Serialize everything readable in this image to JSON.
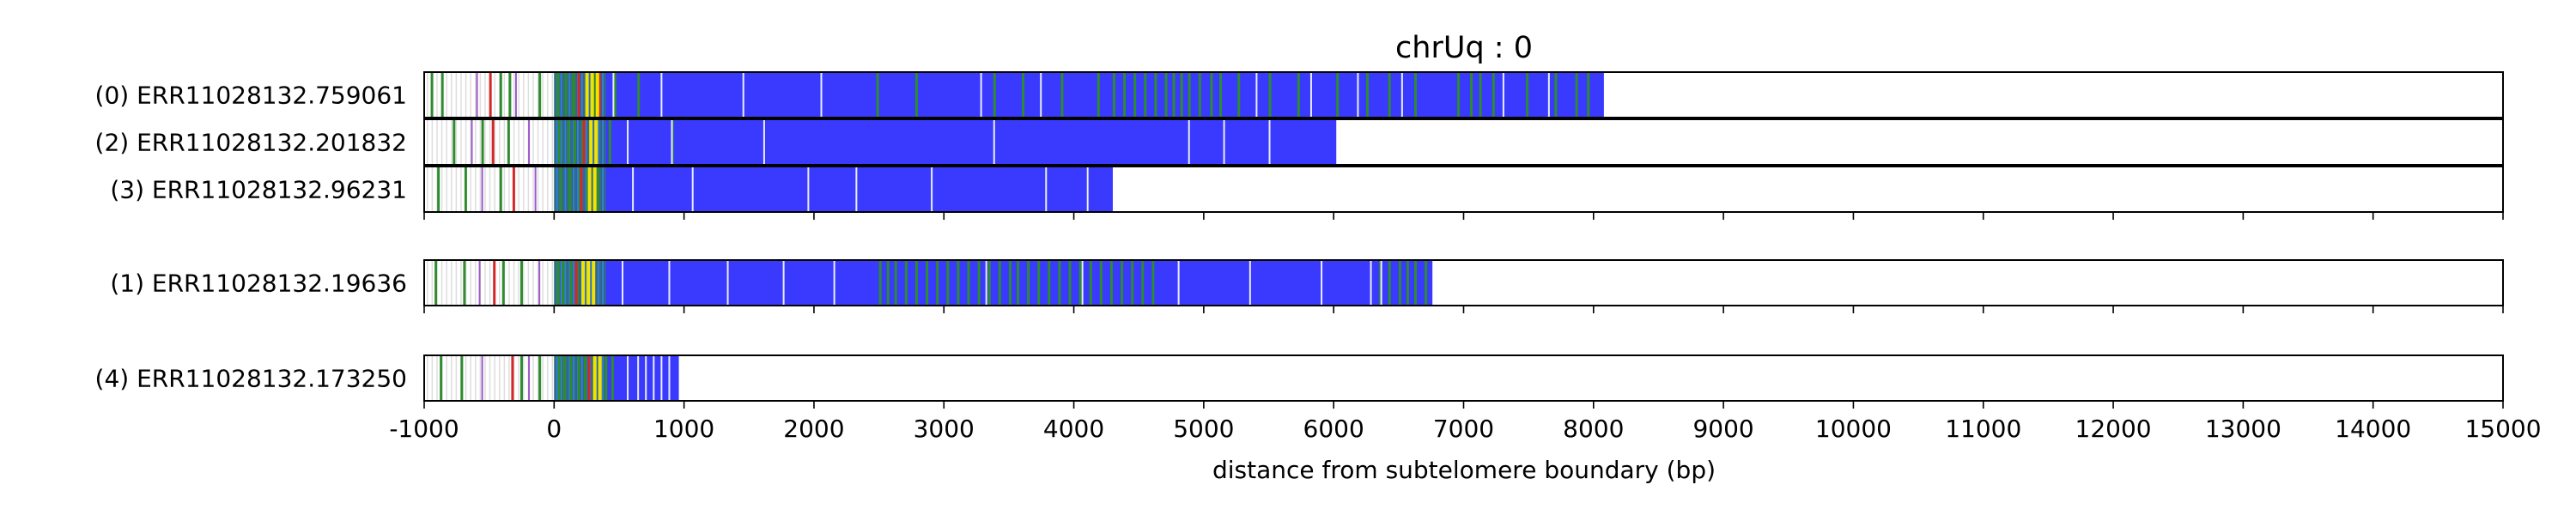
{
  "chart_data": {
    "type": "bar",
    "title": "chrUq : 0",
    "xlabel": "distance from subtelomere boundary (bp)",
    "ylabel": "",
    "xlim": [
      -1000,
      15000
    ],
    "xticks": [
      -1000,
      0,
      1000,
      2000,
      3000,
      4000,
      5000,
      6000,
      7000,
      8000,
      9000,
      10000,
      11000,
      12000,
      13000,
      14000,
      15000
    ],
    "grid": "x-dashed",
    "colors": {
      "fill": "#3a3aff",
      "green": "#2e8b2e",
      "yellow": "#f2e200",
      "red": "#d62728",
      "purple": "#9a59c9",
      "light_gray": "#c8c8c8",
      "teal": "#2aa7a7"
    },
    "groups": [
      {
        "reads": [
          {
            "label": "(0) ERR11028132.759061",
            "end": 8080,
            "green_positions": [
              -950,
              -870,
              -420,
              -350,
              -120,
              20,
              80,
              140,
              300,
              460,
              640,
              2480,
              2780,
              3380,
              3600,
              3900,
              4180,
              4300,
              4380,
              4460,
              4540,
              4620,
              4700,
              4760,
              4820,
              4880,
              4960,
              5050,
              5120,
              5260,
              5500,
              5720,
              6020,
              6250,
              6420,
              6620,
              6950,
              7050,
              7120,
              7220,
              7480,
              7700,
              7860,
              7950
            ],
            "yellow_positions": [
              240,
              280,
              320
            ],
            "red_positions": [
              180,
              340,
              -500
            ],
            "purple_positions": [
              -600,
              -300
            ],
            "white_positions": [
              450,
              820,
              1450,
              2050,
              3280,
              3740,
              5400,
              5820,
              6180,
              6520,
              7300,
              7650
            ]
          },
          {
            "label": "(2) ERR11028132.201832",
            "end": 6020,
            "green_positions": [
              -780,
              -560,
              -360,
              30,
              100,
              150,
              210,
              420,
              900
            ],
            "yellow_positions": [
              270,
              310
            ],
            "red_positions": [
              220,
              -480
            ],
            "purple_positions": [
              -640,
              -200
            ],
            "white_positions": [
              560,
              900,
              1610,
              3380,
              4880,
              5150,
              5500
            ]
          },
          {
            "label": "(3) ERR11028132.96231",
            "end": 4300,
            "green_positions": [
              -900,
              -690,
              -420,
              40,
              110,
              190,
              250,
              330
            ],
            "yellow_positions": [
              260,
              300
            ],
            "red_positions": [
              200,
              -320
            ],
            "purple_positions": [
              -560,
              -150
            ],
            "white_positions": [
              600,
              1060,
              1950,
              2320,
              2900,
              3780,
              4100
            ]
          }
        ]
      },
      {
        "reads": [
          {
            "label": "(1) ERR11028132.19636",
            "end": 6760,
            "green_positions": [
              -920,
              -700,
              -400,
              -260,
              20,
              60,
              120,
              170,
              2500,
              2560,
              2620,
              2700,
              2780,
              2860,
              2940,
              3020,
              3100,
              3180,
              3260,
              3340,
              3420,
              3500,
              3560,
              3640,
              3720,
              3800,
              3880,
              3960,
              4040,
              4120,
              4200,
              4280,
              4360,
              4440,
              4520,
              4600,
              6350,
              6420,
              6500,
              6560,
              6620,
              6700
            ],
            "yellow_positions": [
              210,
              250,
              290
            ],
            "red_positions": [
              160,
              -470
            ],
            "purple_positions": [
              -580,
              -120
            ],
            "white_positions": [
              520,
              880,
              1330,
              1760,
              2150,
              3320,
              4060,
              4800,
              5350,
              5900,
              6280,
              6360
            ]
          }
        ]
      },
      {
        "reads": [
          {
            "label": "(4) ERR11028132.173250",
            "end": 960,
            "green_positions": [
              -880,
              -720,
              -260,
              -120,
              30,
              70,
              120,
              180,
              230,
              390,
              440
            ],
            "yellow_positions": [
              300,
              340
            ],
            "red_positions": [
              260,
              -330
            ],
            "purple_positions": [
              -560,
              -200
            ],
            "white_positions": [
              560,
              640,
              700,
              760,
              820,
              880
            ]
          }
        ]
      }
    ]
  }
}
